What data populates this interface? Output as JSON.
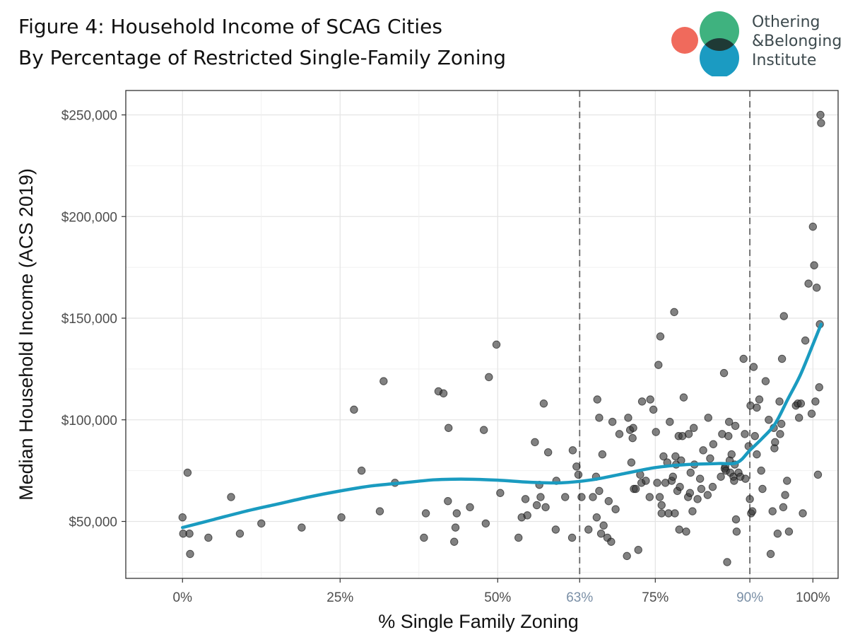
{
  "header": {
    "title_line1": "Figure 4: Household Income of SCAG Cities",
    "title_line2": "By Percentage of Restricted Single-Family Zoning"
  },
  "logo": {
    "line1": "Othering",
    "line2": "&Belonging",
    "line3": "Institute",
    "colors": {
      "red": "#f06a5c",
      "green": "#3fb27f",
      "blue": "#1b9bc2",
      "overlap": "#1f3a36"
    }
  },
  "chart_data": {
    "type": "scatter",
    "title": "",
    "xlabel": "% Single Family Zoning",
    "ylabel": "Median Household Income (ACS 2019)",
    "xlim": [
      -9,
      104
    ],
    "ylim": [
      22000,
      262000
    ],
    "x_ticks": [
      {
        "value": 0,
        "label": "0%",
        "highlight": false
      },
      {
        "value": 25,
        "label": "25%",
        "highlight": false
      },
      {
        "value": 50,
        "label": "50%",
        "highlight": false
      },
      {
        "value": 63,
        "label": "63%",
        "highlight": true
      },
      {
        "value": 75,
        "label": "75%",
        "highlight": false
      },
      {
        "value": 90,
        "label": "90%",
        "highlight": true
      },
      {
        "value": 100,
        "label": "100%",
        "highlight": false
      }
    ],
    "y_ticks": [
      {
        "value": 50000,
        "label": "$50,000"
      },
      {
        "value": 100000,
        "label": "$100,000"
      },
      {
        "value": 150000,
        "label": "$150,000"
      },
      {
        "value": 200000,
        "label": "$200,000"
      },
      {
        "value": 250000,
        "label": "$250,000"
      }
    ],
    "vlines": [
      63,
      90
    ],
    "grid": true,
    "colors": {
      "points": "#333333",
      "trend": "#1a9bc0",
      "vline": "#666666"
    },
    "points": [
      [
        0,
        52000
      ],
      [
        0.1,
        44000
      ],
      [
        0.8,
        74000
      ],
      [
        1.1,
        44000
      ],
      [
        1.2,
        34000
      ],
      [
        4.1,
        42000
      ],
      [
        7.7,
        62000
      ],
      [
        9.1,
        44000
      ],
      [
        12.5,
        49000
      ],
      [
        18.9,
        47000
      ],
      [
        25.2,
        52000
      ],
      [
        27.2,
        105000
      ],
      [
        28.4,
        75000
      ],
      [
        31.3,
        55000
      ],
      [
        31.9,
        119000
      ],
      [
        33.7,
        69000
      ],
      [
        38.3,
        42000
      ],
      [
        38.6,
        54000
      ],
      [
        40.6,
        114000
      ],
      [
        41.4,
        113000
      ],
      [
        42.1,
        60000
      ],
      [
        42.2,
        96000
      ],
      [
        43.1,
        40000
      ],
      [
        43.3,
        47000
      ],
      [
        43.5,
        54000
      ],
      [
        45.6,
        57000
      ],
      [
        47.8,
        95000
      ],
      [
        48.1,
        49000
      ],
      [
        48.6,
        121000
      ],
      [
        49.8,
        137000
      ],
      [
        50.4,
        64000
      ],
      [
        53.3,
        42000
      ],
      [
        53.8,
        52000
      ],
      [
        54.4,
        61000
      ],
      [
        54.7,
        53000
      ],
      [
        55.9,
        89000
      ],
      [
        56.2,
        58000
      ],
      [
        56.6,
        68000
      ],
      [
        56.8,
        62000
      ],
      [
        57.3,
        108000
      ],
      [
        57.6,
        57000
      ],
      [
        58.0,
        84000
      ],
      [
        59.2,
        46000
      ],
      [
        59.3,
        70000
      ],
      [
        60.7,
        62000
      ],
      [
        61.8,
        42000
      ],
      [
        61.9,
        85000
      ],
      [
        62.5,
        77000
      ],
      [
        62.8,
        73000
      ],
      [
        63.3,
        62000
      ],
      [
        64.4,
        46000
      ],
      [
        65.1,
        62000
      ],
      [
        65.6,
        72000
      ],
      [
        65.7,
        52000
      ],
      [
        65.8,
        110000
      ],
      [
        66.1,
        101000
      ],
      [
        66.1,
        65000
      ],
      [
        66.4,
        44000
      ],
      [
        66.6,
        83000
      ],
      [
        66.8,
        48000
      ],
      [
        67.4,
        42000
      ],
      [
        67.6,
        60000
      ],
      [
        68.0,
        40000
      ],
      [
        68.2,
        99000
      ],
      [
        68.7,
        56000
      ],
      [
        69.3,
        93000
      ],
      [
        70.5,
        33000
      ],
      [
        70.7,
        101000
      ],
      [
        71.0,
        95000
      ],
      [
        71.2,
        79000
      ],
      [
        71.4,
        91000
      ],
      [
        71.5,
        96000
      ],
      [
        71.6,
        66000
      ],
      [
        71.9,
        66000
      ],
      [
        72.3,
        36000
      ],
      [
        72.6,
        73000
      ],
      [
        72.8,
        69000
      ],
      [
        72.9,
        109000
      ],
      [
        73.5,
        70000
      ],
      [
        74.1,
        62000
      ],
      [
        74.2,
        110000
      ],
      [
        74.7,
        105000
      ],
      [
        75.1,
        94000
      ],
      [
        75.3,
        69000
      ],
      [
        75.5,
        127000
      ],
      [
        75.7,
        62000
      ],
      [
        75.8,
        141000
      ],
      [
        76.0,
        58000
      ],
      [
        76.0,
        54000
      ],
      [
        76.3,
        82000
      ],
      [
        76.6,
        69000
      ],
      [
        76.9,
        79000
      ],
      [
        77.1,
        54000
      ],
      [
        77.3,
        99000
      ],
      [
        77.6,
        70000
      ],
      [
        77.8,
        72000
      ],
      [
        78.0,
        153000
      ],
      [
        78.1,
        54000
      ],
      [
        78.2,
        82000
      ],
      [
        78.3,
        78000
      ],
      [
        78.5,
        65000
      ],
      [
        78.7,
        92000
      ],
      [
        78.8,
        46000
      ],
      [
        78.9,
        67000
      ],
      [
        79.1,
        80000
      ],
      [
        79.3,
        92000
      ],
      [
        79.5,
        111000
      ],
      [
        79.9,
        45000
      ],
      [
        80.2,
        62000
      ],
      [
        80.3,
        93000
      ],
      [
        80.5,
        64000
      ],
      [
        80.6,
        74000
      ],
      [
        80.9,
        55000
      ],
      [
        81.1,
        96000
      ],
      [
        81.2,
        78000
      ],
      [
        81.7,
        61000
      ],
      [
        82.1,
        71000
      ],
      [
        82.3,
        66000
      ],
      [
        82.6,
        85000
      ],
      [
        83.3,
        63000
      ],
      [
        83.4,
        101000
      ],
      [
        83.7,
        81000
      ],
      [
        84.1,
        67000
      ],
      [
        84.2,
        88000
      ],
      [
        85.4,
        72000
      ],
      [
        85.6,
        93000
      ],
      [
        85.9,
        123000
      ],
      [
        86.0,
        76000
      ],
      [
        86.1,
        77000
      ],
      [
        86.2,
        75000
      ],
      [
        86.4,
        30000
      ],
      [
        86.6,
        92000
      ],
      [
        86.7,
        99000
      ],
      [
        86.8,
        80000
      ],
      [
        86.9,
        74000
      ],
      [
        87.1,
        83000
      ],
      [
        87.4,
        72000
      ],
      [
        87.5,
        70000
      ],
      [
        87.6,
        78000
      ],
      [
        87.7,
        97000
      ],
      [
        87.8,
        51000
      ],
      [
        87.9,
        45000
      ],
      [
        88.2,
        74000
      ],
      [
        88.5,
        72000
      ],
      [
        89.0,
        130000
      ],
      [
        89.2,
        93000
      ],
      [
        89.3,
        71000
      ],
      [
        89.8,
        87000
      ],
      [
        90.0,
        61000
      ],
      [
        90.1,
        107000
      ],
      [
        90.2,
        54000
      ],
      [
        90.4,
        55000
      ],
      [
        90.6,
        126000
      ],
      [
        90.8,
        92000
      ],
      [
        91.1,
        83000
      ],
      [
        91.1,
        106000
      ],
      [
        91.5,
        110000
      ],
      [
        91.8,
        75000
      ],
      [
        92.0,
        66000
      ],
      [
        92.5,
        119000
      ],
      [
        93.0,
        100000
      ],
      [
        93.3,
        34000
      ],
      [
        93.6,
        55000
      ],
      [
        93.8,
        96000
      ],
      [
        93.9,
        86000
      ],
      [
        94.0,
        89000
      ],
      [
        94.4,
        44000
      ],
      [
        94.7,
        109000
      ],
      [
        94.8,
        93000
      ],
      [
        95.0,
        98000
      ],
      [
        95.1,
        130000
      ],
      [
        95.3,
        57000
      ],
      [
        95.4,
        151000
      ],
      [
        95.6,
        63000
      ],
      [
        95.9,
        70000
      ],
      [
        96.2,
        45000
      ],
      [
        97.3,
        107000
      ],
      [
        97.6,
        108000
      ],
      [
        97.8,
        101000
      ],
      [
        98.1,
        108000
      ],
      [
        98.4,
        54000
      ],
      [
        98.8,
        139000
      ],
      [
        99.3,
        167000
      ],
      [
        99.8,
        103000
      ],
      [
        100.0,
        195000
      ],
      [
        100.2,
        176000
      ],
      [
        100.4,
        109000
      ],
      [
        100.6,
        165000
      ],
      [
        100.8,
        73000
      ],
      [
        101.0,
        116000
      ],
      [
        101.1,
        147000
      ],
      [
        101.2,
        250000
      ],
      [
        101.3,
        246000
      ]
    ],
    "trend": [
      [
        0,
        47000
      ],
      [
        5,
        51000
      ],
      [
        10,
        55000
      ],
      [
        15,
        58500
      ],
      [
        20,
        62000
      ],
      [
        25,
        65000
      ],
      [
        30,
        67500
      ],
      [
        35,
        69000
      ],
      [
        40,
        70500
      ],
      [
        45,
        70800
      ],
      [
        50,
        70300
      ],
      [
        55,
        69300
      ],
      [
        60,
        69000
      ],
      [
        65,
        70500
      ],
      [
        70,
        73500
      ],
      [
        75,
        76500
      ],
      [
        80,
        78000
      ],
      [
        85,
        78500
      ],
      [
        88,
        79000
      ],
      [
        90,
        85000
      ],
      [
        92,
        91000
      ],
      [
        94,
        98000
      ],
      [
        96,
        110000
      ],
      [
        98,
        122000
      ],
      [
        100,
        137000
      ],
      [
        101.3,
        147000
      ]
    ]
  }
}
